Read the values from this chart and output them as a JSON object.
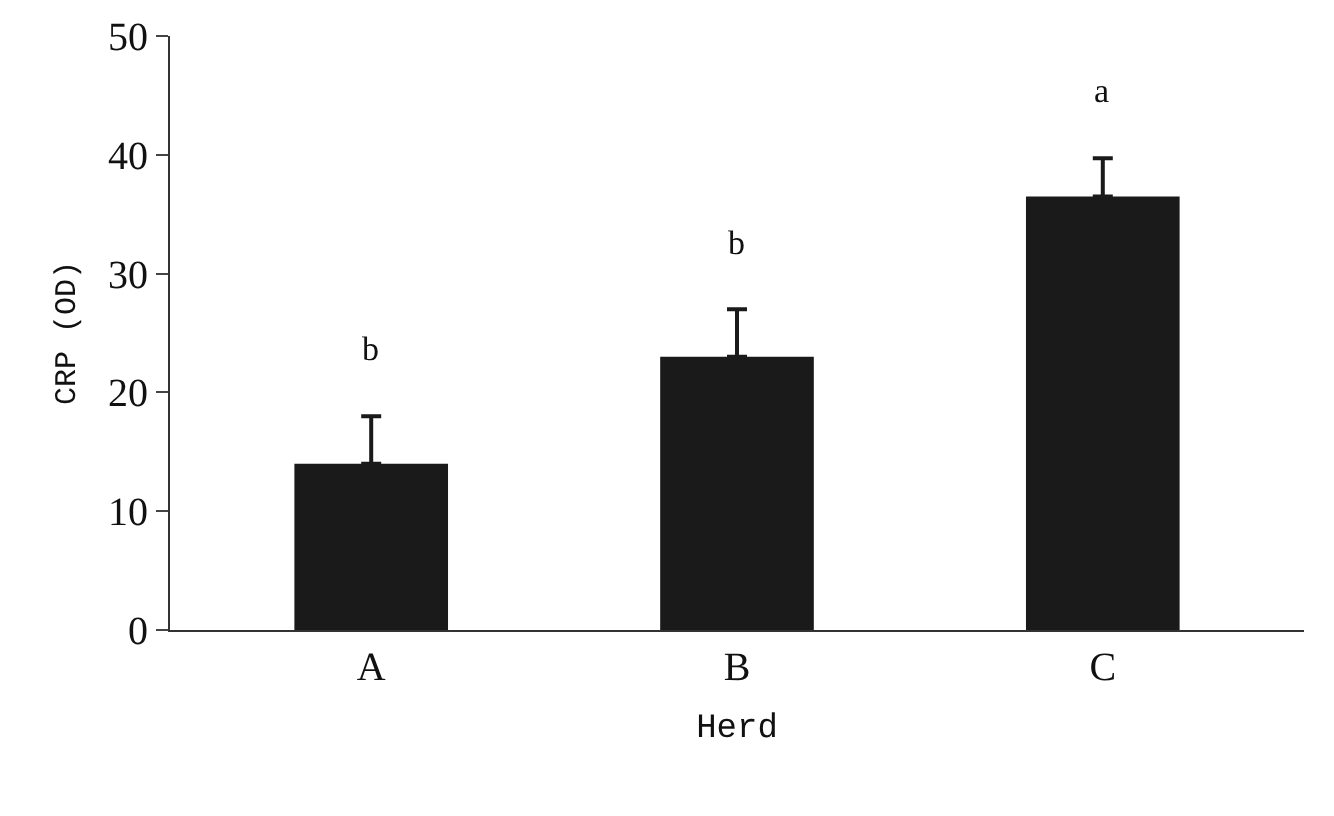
{
  "chart_data": {
    "type": "bar",
    "xlabel": "Herd",
    "ylabel": "CRP (OD)",
    "categories": [
      "A",
      "B",
      "C"
    ],
    "values": [
      14,
      23,
      36.5
    ],
    "color": "#1a1a1a",
    "errors": [
      [
        14,
        18
      ],
      [
        23,
        27
      ],
      [
        36.5,
        39.7
      ]
    ],
    "ylim": [
      0,
      50
    ],
    "yticks": [
      0,
      10,
      20,
      30,
      40,
      50
    ],
    "grid": false,
    "legend": false,
    "annotations": [
      {
        "text": "b",
        "x": "A",
        "y": 18
      },
      {
        "text": "b",
        "x": "B",
        "y": 27
      },
      {
        "text": "a",
        "x": "C",
        "y": 39.7
      }
    ]
  }
}
